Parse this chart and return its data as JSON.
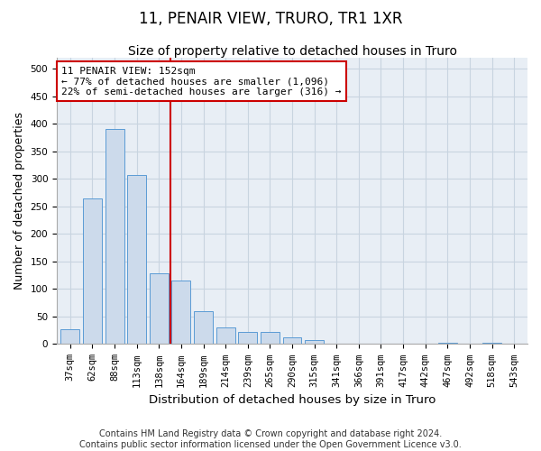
{
  "title": "11, PENAIR VIEW, TRURO, TR1 1XR",
  "subtitle": "Size of property relative to detached houses in Truro",
  "xlabel": "Distribution of detached houses by size in Truro",
  "ylabel": "Number of detached properties",
  "footnote": "Contains HM Land Registry data © Crown copyright and database right 2024.\nContains public sector information licensed under the Open Government Licence v3.0.",
  "categories": [
    "37sqm",
    "62sqm",
    "88sqm",
    "113sqm",
    "138sqm",
    "164sqm",
    "189sqm",
    "214sqm",
    "239sqm",
    "265sqm",
    "290sqm",
    "315sqm",
    "341sqm",
    "366sqm",
    "391sqm",
    "417sqm",
    "442sqm",
    "467sqm",
    "492sqm",
    "518sqm",
    "543sqm"
  ],
  "values": [
    27,
    265,
    390,
    307,
    128,
    115,
    60,
    30,
    22,
    22,
    12,
    7,
    0,
    0,
    0,
    0,
    0,
    3,
    0,
    3,
    0
  ],
  "bar_color": "#ccdaeb",
  "bar_edge_color": "#5b9bd5",
  "red_line_x": 4.5,
  "annotation_text": "11 PENAIR VIEW: 152sqm\n← 77% of detached houses are smaller (1,096)\n22% of semi-detached houses are larger (316) →",
  "annotation_box_color": "#ffffff",
  "annotation_box_edge": "#cc0000",
  "red_line_color": "#cc0000",
  "ylim": [
    0,
    520
  ],
  "yticks": [
    0,
    50,
    100,
    150,
    200,
    250,
    300,
    350,
    400,
    450,
    500
  ],
  "title_fontsize": 12,
  "subtitle_fontsize": 10,
  "xlabel_fontsize": 9.5,
  "ylabel_fontsize": 9,
  "tick_fontsize": 7.5,
  "footnote_fontsize": 7,
  "background_color": "#ffffff",
  "plot_bg_color": "#e8eef5",
  "grid_color": "#c8d4e0"
}
